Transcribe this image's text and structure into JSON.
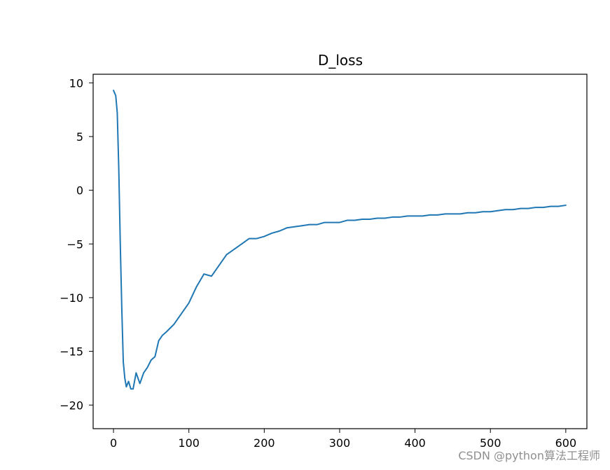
{
  "chart_data": {
    "type": "line",
    "title": "D_loss",
    "xlabel": "",
    "ylabel": "",
    "xlim": [
      -27,
      628
    ],
    "ylim": [
      -22.2,
      10.8
    ],
    "xticks": [
      0,
      100,
      200,
      300,
      400,
      500,
      600
    ],
    "yticks": [
      10,
      5,
      0,
      -5,
      -10,
      -15,
      -20
    ],
    "xtick_labels": [
      "0",
      "100",
      "200",
      "300",
      "400",
      "500",
      "600"
    ],
    "ytick_labels": [
      "10",
      "5",
      "0",
      "−5",
      "−10",
      "−15",
      "−20"
    ],
    "grid": false,
    "legend": "none",
    "series": [
      {
        "color": "#1f77b4",
        "x": [
          0,
          3,
          5,
          7,
          9,
          11,
          13,
          15,
          17,
          20,
          23,
          26,
          30,
          35,
          40,
          45,
          50,
          55,
          60,
          65,
          70,
          80,
          90,
          100,
          110,
          120,
          130,
          140,
          150,
          160,
          170,
          180,
          190,
          200,
          210,
          220,
          230,
          240,
          250,
          260,
          270,
          280,
          290,
          300,
          310,
          320,
          330,
          340,
          350,
          360,
          370,
          380,
          390,
          400,
          410,
          420,
          430,
          440,
          450,
          460,
          470,
          480,
          490,
          500,
          510,
          520,
          530,
          540,
          550,
          560,
          570,
          580,
          590,
          600
        ],
        "y": [
          9.3,
          8.8,
          7.2,
          2.0,
          -5.0,
          -11.0,
          -16.0,
          -17.5,
          -18.3,
          -17.8,
          -18.5,
          -18.5,
          -17.0,
          -18.0,
          -17.0,
          -16.5,
          -15.8,
          -15.5,
          -14.0,
          -13.5,
          -13.2,
          -12.5,
          -11.5,
          -10.5,
          -9.0,
          -7.8,
          -8.0,
          -7.0,
          -6.0,
          -5.5,
          -5.0,
          -4.5,
          -4.5,
          -4.3,
          -4.0,
          -3.8,
          -3.5,
          -3.4,
          -3.3,
          -3.2,
          -3.2,
          -3.0,
          -3.0,
          -3.0,
          -2.8,
          -2.8,
          -2.7,
          -2.7,
          -2.6,
          -2.6,
          -2.5,
          -2.5,
          -2.4,
          -2.4,
          -2.4,
          -2.3,
          -2.3,
          -2.2,
          -2.2,
          -2.2,
          -2.1,
          -2.1,
          -2.0,
          -2.0,
          -1.9,
          -1.8,
          -1.8,
          -1.7,
          -1.7,
          -1.6,
          -1.6,
          -1.5,
          -1.5,
          -1.4
        ],
        "notes": ""
      }
    ]
  },
  "watermark": "CSDN @python算法工程师"
}
